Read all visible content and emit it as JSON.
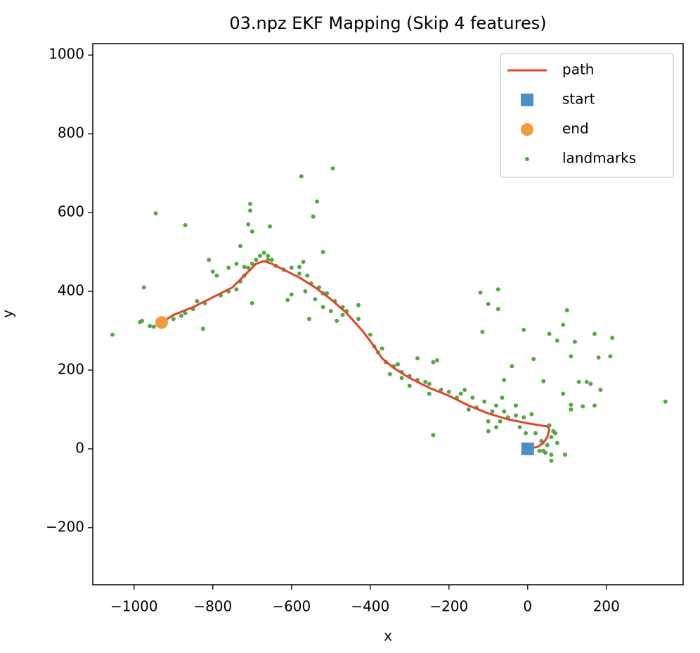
{
  "chart_data": {
    "type": "line",
    "title": "03.npz EKF Mapping (Skip 4 features)",
    "x_label": "x",
    "y_label": "y",
    "xlim": [
      -1105,
      395
    ],
    "ylim": [
      -345,
      1029
    ],
    "xticks": [
      {
        "value": -1000,
        "label": "−1000"
      },
      {
        "value": -800,
        "label": "−800"
      },
      {
        "value": -600,
        "label": "−600"
      },
      {
        "value": -400,
        "label": "−400"
      },
      {
        "value": -200,
        "label": "−200"
      },
      0,
      200
    ],
    "yticks": [
      {
        "value": -200,
        "label": "−200"
      },
      0,
      200,
      400,
      600,
      800,
      1000
    ],
    "legend": "upper right",
    "grid": false,
    "series": [
      {
        "name": "path",
        "type": "line",
        "color": "#e0452a",
        "x": [
          0,
          10,
          25,
          40,
          50,
          55,
          50,
          30,
          0,
          -50,
          -100,
          -150,
          -200,
          -250,
          -300,
          -340,
          -370,
          -390,
          -420,
          -460,
          -500,
          -540,
          -580,
          -620,
          -650,
          -670,
          -690,
          -720,
          -750,
          -800,
          -850,
          -900,
          -930
        ],
        "y": [
          0,
          2,
          5,
          15,
          30,
          50,
          57,
          60,
          65,
          75,
          90,
          110,
          135,
          155,
          180,
          205,
          230,
          260,
          300,
          345,
          380,
          410,
          435,
          455,
          470,
          477,
          470,
          440,
          410,
          385,
          360,
          340,
          321
        ]
      },
      {
        "name": "start",
        "type": "scatter",
        "marker": "square",
        "color": "#4a8fc6",
        "x": [
          0
        ],
        "y": [
          0
        ]
      },
      {
        "name": "end",
        "type": "scatter",
        "marker": "circle",
        "color": "#f39a3a",
        "x": [
          -930
        ],
        "y": [
          321
        ]
      },
      {
        "name": "landmarks",
        "type": "scatter",
        "marker": "dot",
        "color": "#55a845",
        "x": [
          -1055,
          -975,
          -945,
          -870,
          -825,
          -575,
          -495,
          -535,
          -705,
          -705,
          -710,
          -700,
          -655,
          -545,
          -730,
          -610,
          -600,
          -555,
          -520,
          -570,
          -485,
          -430,
          -700,
          -120,
          -75,
          -100,
          -75,
          -115,
          -10,
          15,
          40,
          55,
          75,
          90,
          100,
          120,
          110,
          170,
          180,
          210,
          215,
          350,
          130,
          150,
          160,
          185,
          110,
          110,
          140,
          170,
          90,
          -40,
          -60,
          -65,
          -30,
          -240,
          -280,
          -230,
          -240,
          -160,
          95,
          60,
          40,
          50,
          60,
          65,
          55,
          70,
          45,
          30,
          75,
          60,
          35,
          20,
          -50,
          -70,
          -90,
          -100,
          -130,
          -150,
          -180,
          -200,
          -220,
          -250,
          -280,
          -300,
          -320,
          -340,
          -360,
          -380,
          -390,
          -370,
          -400,
          -430,
          -460,
          -470,
          -490,
          -510,
          -530,
          -550,
          -540,
          -520,
          -560,
          -580,
          -600,
          -620,
          -640,
          -660,
          -680,
          -670,
          -690,
          -700,
          -710,
          -720,
          -730,
          -740,
          -760,
          -780,
          -790,
          -760,
          -800,
          -810,
          -820,
          -840,
          -850,
          -870,
          -880,
          -900,
          -920,
          -940,
          -950,
          -960,
          -980,
          -985,
          -170,
          -140,
          -110,
          -80,
          -60,
          -30,
          -10,
          10,
          -20,
          -5,
          -100,
          -80,
          -300,
          -250,
          -350,
          -330,
          -320,
          -260,
          -660,
          -740,
          -720,
          -650,
          -565,
          -520,
          -580,
          -500,
          -470
        ],
        "y": [
          290,
          410,
          598,
          568,
          305,
          692,
          712,
          628,
          622,
          605,
          570,
          552,
          565,
          590,
          515,
          378,
          392,
          330,
          500,
          475,
          325,
          365,
          370,
          397,
          405,
          368,
          355,
          297,
          302,
          228,
          172,
          292,
          275,
          315,
          352,
          272,
          235,
          292,
          232,
          235,
          282,
          120,
          170,
          170,
          165,
          150,
          112,
          100,
          108,
          110,
          140,
          210,
          175,
          130,
          110,
          35,
          230,
          225,
          220,
          150,
          -15,
          -30,
          -5,
          10,
          30,
          45,
          60,
          40,
          -10,
          -5,
          15,
          -15,
          20,
          40,
          80,
          70,
          95,
          70,
          105,
          100,
          130,
          145,
          150,
          165,
          175,
          185,
          195,
          210,
          220,
          245,
          260,
          255,
          290,
          330,
          350,
          360,
          375,
          395,
          410,
          420,
          380,
          360,
          440,
          445,
          460,
          455,
          465,
          480,
          490,
          498,
          480,
          470,
          460,
          440,
          425,
          405,
          400,
          390,
          440,
          460,
          450,
          480,
          370,
          375,
          355,
          345,
          338,
          330,
          325,
          315,
          310,
          312,
          325,
          322,
          140,
          130,
          120,
          110,
          95,
          85,
          80,
          88,
          55,
          40,
          45,
          55,
          160,
          140,
          190,
          215,
          180,
          170,
          490,
          470,
          462,
          480,
          400,
          395,
          462,
          350,
          340
        ]
      }
    ]
  }
}
